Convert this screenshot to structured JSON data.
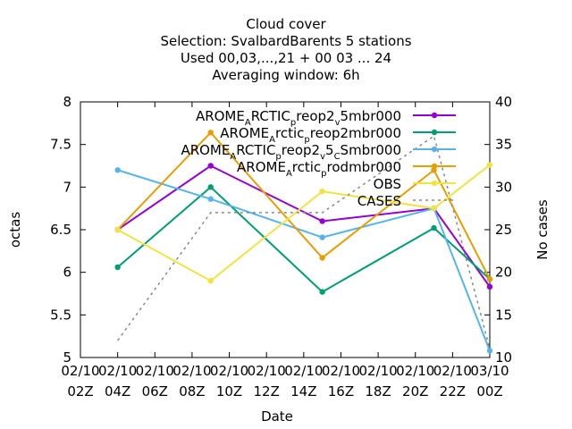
{
  "chart_data": {
    "type": "line",
    "title_lines": [
      "Cloud cover",
      "Selection: SvalbardBarents      5 stations",
      "Used  00,03,...,21  + 00 03 ... 24",
      "Averaging window:  6h"
    ],
    "xlabel": "Date",
    "ylabel": "octas",
    "y2label": "No cases",
    "x_ticks": [
      [
        "02/10",
        "02Z"
      ],
      [
        "02/10",
        "04Z"
      ],
      [
        "02/10",
        "06Z"
      ],
      [
        "02/10",
        "08Z"
      ],
      [
        "02/10",
        "10Z"
      ],
      [
        "02/10",
        "12Z"
      ],
      [
        "02/10",
        "14Z"
      ],
      [
        "02/10",
        "16Z"
      ],
      [
        "02/10",
        "18Z"
      ],
      [
        "02/10",
        "20Z"
      ],
      [
        "02/10",
        "22Z"
      ],
      [
        "03/10",
        "00Z"
      ]
    ],
    "x_hours": [
      2,
      4,
      6,
      8,
      10,
      12,
      14,
      16,
      18,
      20,
      22,
      24
    ],
    "ylim": [
      5,
      8
    ],
    "y_ticks": [
      5,
      5.5,
      6,
      6.5,
      7,
      7.5,
      8
    ],
    "y2lim": [
      10,
      40
    ],
    "y2_ticks": [
      10,
      15,
      20,
      25,
      30,
      35,
      40
    ],
    "grid": false,
    "legend_placement": "top-right",
    "series": [
      {
        "name": "AROME_ARCTIC_preop2_v5mbr000",
        "legend_parts": [
          [
            "AROME",
            ""
          ],
          [
            "A",
            "sub"
          ],
          [
            "RCTIC",
            ""
          ],
          [
            "p",
            "sub"
          ],
          [
            "reop2",
            ""
          ],
          [
            "v",
            "sub"
          ],
          [
            "5mbr000",
            ""
          ]
        ],
        "color": "#9400d3",
        "marker": "circle",
        "dash": "",
        "x": [
          4,
          9,
          15,
          21,
          24
        ],
        "y": [
          6.5,
          7.25,
          6.6,
          6.75,
          5.83
        ]
      },
      {
        "name": "AROME_Arctic_reop2mbr000",
        "legend_parts": [
          [
            "AROME",
            ""
          ],
          [
            "A",
            "sub"
          ],
          [
            "rctic",
            ""
          ],
          [
            "p",
            "sub"
          ],
          [
            "reop2mbr000",
            ""
          ]
        ],
        "color": "#009e73",
        "marker": "circle",
        "dash": "",
        "x": [
          4,
          9,
          15,
          21,
          24
        ],
        "y": [
          6.06,
          7.0,
          5.77,
          6.52,
          5.92
        ]
      },
      {
        "name": "AROME_ARCTIC_preop2_v5_CSmbr000",
        "legend_parts": [
          [
            "AROME",
            ""
          ],
          [
            "A",
            "sub"
          ],
          [
            "RCTIC",
            ""
          ],
          [
            "p",
            "sub"
          ],
          [
            "reop2",
            ""
          ],
          [
            "v",
            "sub"
          ],
          [
            "5",
            ""
          ],
          [
            "C",
            "sub"
          ],
          [
            "Smbr000",
            ""
          ]
        ],
        "color": "#56b4e9",
        "marker": "circle",
        "dash": "",
        "x": [
          4,
          9,
          15,
          21,
          24
        ],
        "y": [
          7.2,
          6.86,
          6.41,
          6.75,
          5.08
        ]
      },
      {
        "name": "AROME_Arctic_prodmbr000",
        "legend_parts": [
          [
            "AROME",
            ""
          ],
          [
            "A",
            "sub"
          ],
          [
            "rctic",
            ""
          ],
          [
            "p",
            "sub"
          ],
          [
            "rodmbr000",
            ""
          ]
        ],
        "color": "#e69f00",
        "marker": "circle",
        "dash": "",
        "x": [
          4,
          9,
          15,
          21,
          24
        ],
        "y": [
          6.5,
          7.64,
          6.17,
          7.2,
          5.92
        ]
      },
      {
        "name": "OBS",
        "legend_parts": [
          [
            "OBS",
            ""
          ]
        ],
        "color": "#f0e442",
        "marker": "circle",
        "dash": "",
        "x": [
          4,
          9,
          15,
          21,
          24
        ],
        "y": [
          6.5,
          5.9,
          6.95,
          6.75,
          7.26
        ]
      },
      {
        "name": "CASES",
        "legend_parts": [
          [
            "CASES",
            ""
          ]
        ],
        "color": "#888888",
        "marker": "none",
        "dash": "3,4",
        "axis": "y2",
        "x": [
          4,
          9,
          15,
          21,
          24
        ],
        "y": [
          12,
          27,
          27,
          36,
          11
        ]
      }
    ]
  }
}
